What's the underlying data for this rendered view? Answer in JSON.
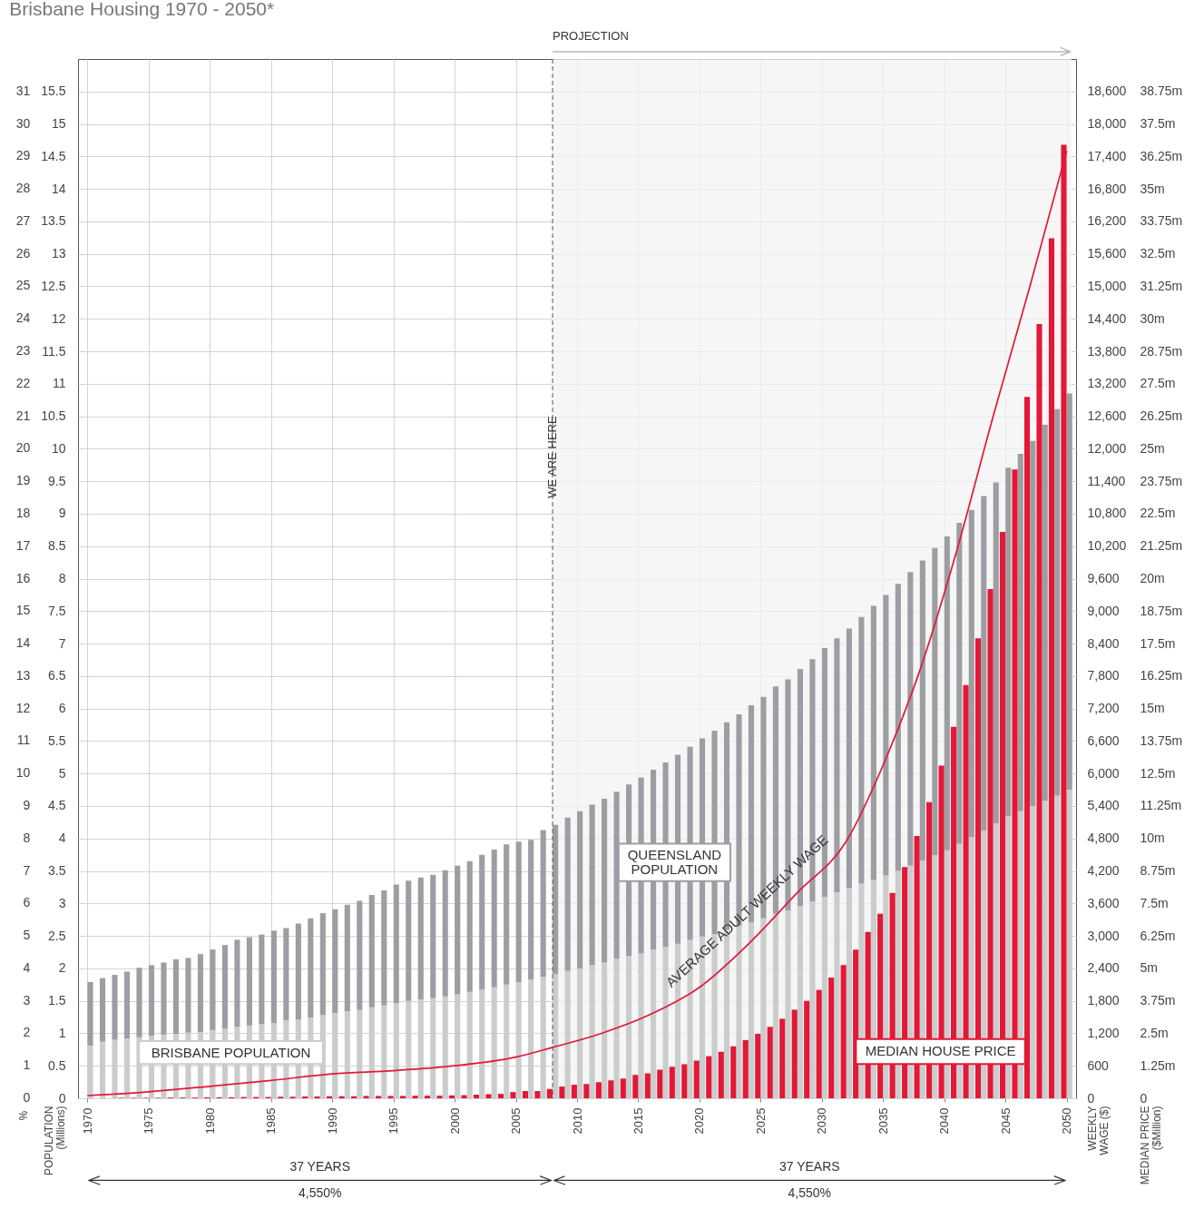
{
  "chart_data": {
    "type": "bar",
    "title": "Brisbane Housing 1970 - 2050*",
    "ylabel": "POPULATION (Millions)",
    "y2label": "WEEKLY WAGE ($)",
    "y3label": "MEDIAN PRICE ($Million)",
    "x": [
      1970,
      1971,
      1972,
      1973,
      1974,
      1975,
      1976,
      1977,
      1978,
      1979,
      1980,
      1981,
      1982,
      1983,
      1984,
      1985,
      1986,
      1987,
      1988,
      1989,
      1990,
      1991,
      1992,
      1993,
      1994,
      1995,
      1996,
      1997,
      1998,
      1999,
      2000,
      2001,
      2002,
      2003,
      2004,
      2005,
      2006,
      2007,
      2008,
      2009,
      2010,
      2011,
      2012,
      2013,
      2014,
      2015,
      2016,
      2017,
      2018,
      2019,
      2020,
      2021,
      2022,
      2023,
      2024,
      2025,
      2026,
      2027,
      2028,
      2029,
      2030,
      2031,
      2032,
      2033,
      2034,
      2035,
      2036,
      2037,
      2038,
      2039,
      2040,
      2041,
      2042,
      2043,
      2044,
      2045,
      2046,
      2047,
      2048,
      2049,
      2050
    ],
    "xlim": [
      1969.6,
      2050.4
    ],
    "xticks": [
      1970,
      1975,
      1980,
      1985,
      1990,
      1995,
      2000,
      2005,
      2010,
      2015,
      2020,
      2025,
      2030,
      2035,
      2040,
      2045,
      2050
    ],
    "ylim": [
      0,
      16
    ],
    "yticks": [
      0,
      0.5,
      1,
      1.5,
      2,
      2.5,
      3,
      3.5,
      4,
      4.5,
      5,
      5.5,
      6,
      6.5,
      7,
      7.5,
      8,
      8.5,
      9,
      9.5,
      10,
      10.5,
      11,
      11.5,
      12,
      12.5,
      13,
      13.5,
      14,
      14.5,
      15,
      15.5
    ],
    "y2lim": [
      0,
      19200
    ],
    "y2ticks": [
      0,
      600,
      {
        "value": 1200,
        "label": "1,200"
      },
      {
        "value": 1800,
        "label": "1,800"
      },
      {
        "value": 2400,
        "label": "2,400"
      },
      {
        "value": 3000,
        "label": "3,000"
      },
      {
        "value": 3600,
        "label": "3,600"
      },
      {
        "value": 4200,
        "label": "4,200"
      },
      {
        "value": 4800,
        "label": "4,800"
      },
      {
        "value": 5400,
        "label": "5,400"
      },
      {
        "value": 6000,
        "label": "6,000"
      },
      {
        "value": 6600,
        "label": "6,600"
      },
      {
        "value": 7200,
        "label": "7,200"
      },
      {
        "value": 7800,
        "label": "7,800"
      },
      {
        "value": 8400,
        "label": "8,400"
      },
      {
        "value": 9000,
        "label": "9,000"
      },
      {
        "value": 9600,
        "label": "9,600"
      },
      {
        "value": 10200,
        "label": "10,200"
      },
      {
        "value": 10800,
        "label": "10,800"
      },
      {
        "value": 11400,
        "label": "11,400"
      },
      {
        "value": 12000,
        "label": "12,000"
      },
      {
        "value": 12600,
        "label": "12,600"
      },
      {
        "value": 13200,
        "label": "13,200"
      },
      {
        "value": 13800,
        "label": "13,800"
      },
      {
        "value": 14400,
        "label": "14,400"
      },
      {
        "value": 15000,
        "label": "15,000"
      },
      {
        "value": 15600,
        "label": "15,600"
      },
      {
        "value": 16200,
        "label": "16,200"
      },
      {
        "value": 16800,
        "label": "16,800"
      },
      {
        "value": 17400,
        "label": "17,400"
      },
      {
        "value": 18000,
        "label": "18,000"
      },
      {
        "value": 18600,
        "label": "18,600"
      }
    ],
    "y3lim": [
      0,
      40
    ],
    "y3ticks": [
      0,
      {
        "value": 1.25,
        "label": "1.25m"
      },
      {
        "value": 2.5,
        "label": "2.5m"
      },
      {
        "value": 3.75,
        "label": "3.75m"
      },
      {
        "value": 5,
        "label": "5m"
      },
      {
        "value": 6.25,
        "label": "6.25m"
      },
      {
        "value": 7.5,
        "label": "7.5m"
      },
      {
        "value": 8.75,
        "label": "8.75m"
      },
      {
        "value": 10,
        "label": "10m"
      },
      {
        "value": 11.25,
        "label": "11.25m"
      },
      {
        "value": 12.5,
        "label": "12.5m"
      },
      {
        "value": 13.75,
        "label": "13.75m"
      },
      {
        "value": 15,
        "label": "15m"
      },
      {
        "value": 16.25,
        "label": "16.25m"
      },
      {
        "value": 17.5,
        "label": "17.5m"
      },
      {
        "value": 18.75,
        "label": "18.75m"
      },
      {
        "value": 20,
        "label": "20m"
      },
      {
        "value": 21.25,
        "label": "21.25m"
      },
      {
        "value": 22.5,
        "label": "22.5m"
      },
      {
        "value": 23.75,
        "label": "23.75m"
      },
      {
        "value": 25,
        "label": "25m"
      },
      {
        "value": 26.25,
        "label": "26.25m"
      },
      {
        "value": 27.5,
        "label": "27.5m"
      },
      {
        "value": 28.75,
        "label": "28.75m"
      },
      {
        "value": 30,
        "label": "30m"
      },
      {
        "value": 31.25,
        "label": "31.25m"
      },
      {
        "value": 32.5,
        "label": "32.5m"
      },
      {
        "value": 33.75,
        "label": "33.75m"
      },
      {
        "value": 35,
        "label": "35m"
      },
      {
        "value": 36.25,
        "label": "36.25m"
      },
      {
        "value": 37.5,
        "label": "37.5m"
      },
      {
        "value": 38.75,
        "label": "38.75m"
      }
    ],
    "series": [
      {
        "name": "BRISBANE POPULATION",
        "color": "#cbcccd",
        "values": [
          0.81,
          0.87,
          0.9,
          0.92,
          0.94,
          0.96,
          0.98,
          0.99,
          1.01,
          1.02,
          1.05,
          1.07,
          1.1,
          1.12,
          1.14,
          1.16,
          1.2,
          1.21,
          1.24,
          1.28,
          1.31,
          1.34,
          1.36,
          1.4,
          1.43,
          1.46,
          1.5,
          1.52,
          1.54,
          1.57,
          1.6,
          1.64,
          1.67,
          1.71,
          1.75,
          1.79,
          1.83,
          1.87,
          1.91,
          1.96,
          2.0,
          2.05,
          2.09,
          2.15,
          2.19,
          2.23,
          2.29,
          2.33,
          2.38,
          2.44,
          2.49,
          2.53,
          2.6,
          2.66,
          2.71,
          2.77,
          2.84,
          2.89,
          2.96,
          3.03,
          3.1,
          3.17,
          3.24,
          3.31,
          3.36,
          3.43,
          3.5,
          3.58,
          3.66,
          3.74,
          3.82,
          3.92,
          4.02,
          4.12,
          4.23,
          4.34,
          4.42,
          4.5,
          4.58,
          4.66,
          4.75
        ]
      },
      {
        "name": "QUEENSLAND POPULATION",
        "color": "#9d9ea2",
        "values": [
          0.98,
          0.98,
          1.0,
          1.03,
          1.07,
          1.09,
          1.11,
          1.15,
          1.15,
          1.2,
          1.24,
          1.29,
          1.34,
          1.36,
          1.38,
          1.42,
          1.42,
          1.48,
          1.53,
          1.57,
          1.6,
          1.64,
          1.68,
          1.73,
          1.77,
          1.83,
          1.85,
          1.88,
          1.9,
          1.94,
          1.98,
          2.01,
          2.08,
          2.12,
          2.16,
          2.16,
          2.15,
          2.26,
          2.3,
          2.36,
          2.42,
          2.47,
          2.52,
          2.57,
          2.64,
          2.71,
          2.77,
          2.84,
          2.91,
          2.97,
          3.05,
          3.13,
          3.19,
          3.25,
          3.34,
          3.41,
          3.5,
          3.56,
          3.65,
          3.73,
          3.83,
          3.91,
          3.99,
          4.1,
          4.22,
          4.32,
          4.42,
          4.52,
          4.62,
          4.73,
          4.83,
          4.94,
          5.04,
          5.15,
          5.25,
          5.37,
          5.5,
          5.62,
          5.79,
          5.95,
          6.1
        ]
      },
      {
        "name": "MEDIAN HOUSE PRICE",
        "color": "#e31837",
        "axis": "y3",
        "values": [
          null,
          null,
          null,
          0.02,
          0.02,
          0.02,
          0.02,
          0.03,
          0.03,
          0.03,
          0.04,
          0.04,
          0.04,
          0.05,
          0.05,
          0.05,
          0.06,
          0.06,
          0.07,
          0.07,
          0.08,
          0.08,
          0.08,
          0.09,
          0.09,
          0.09,
          0.09,
          0.1,
          0.1,
          0.1,
          0.11,
          0.12,
          0.14,
          0.16,
          0.17,
          0.24,
          0.28,
          0.28,
          0.36,
          0.45,
          0.52,
          0.55,
          0.62,
          0.69,
          0.76,
          0.9,
          0.96,
          1.1,
          1.21,
          1.31,
          1.45,
          1.62,
          1.79,
          2.0,
          2.24,
          2.48,
          2.75,
          3.06,
          3.41,
          3.75,
          4.17,
          4.65,
          5.13,
          5.72,
          6.4,
          7.1,
          7.9,
          8.9,
          10.1,
          11.4,
          12.8,
          14.3,
          15.9,
          17.7,
          19.6,
          21.8,
          24.2,
          27.0,
          29.8,
          33.1,
          36.7
        ]
      },
      {
        "name": "AVERAGE ADULT WEEKLY WAGE",
        "type": "line",
        "axis": "y2",
        "color": "#e31837",
        "x": [
          1970,
          1975,
          1980,
          1985,
          1990,
          1995,
          2000,
          2005,
          2008,
          2012,
          2016,
          2020,
          2024,
          2028,
          2032,
          2035,
          2038,
          2041,
          2044,
          2047,
          2050
        ],
        "values": [
          50,
          120,
          220,
          330,
          450,
          510,
          600,
          760,
          940,
          1200,
          1550,
          2050,
          2850,
          3800,
          4750,
          6150,
          7900,
          10100,
          12600,
          15000,
          17500
        ]
      }
    ],
    "stacked": true,
    "grid": true,
    "ref_lines": [
      {
        "axis": "x",
        "value": 2008,
        "label": "WE ARE HERE",
        "line_style": "dashed",
        "color": "#555555"
      }
    ],
    "bands": [
      {
        "axis": "x",
        "from": 2008,
        "to": 2050.4,
        "label": "PROJECTION",
        "color": "#f2f3f2"
      }
    ],
    "annotations": [
      "37 YEARS",
      "4,550%",
      "37 YEARS",
      "4,550%",
      "%",
      "0",
      "1",
      "2",
      "3",
      "4",
      "5",
      "6",
      "7",
      "8",
      "9",
      "10",
      "11",
      "12",
      "13",
      "14",
      "15",
      "16",
      "17",
      "18",
      "19",
      "20",
      "21",
      "22",
      "23",
      "24",
      "25",
      "26",
      "27",
      "28",
      "29",
      "30",
      "31"
    ]
  }
}
